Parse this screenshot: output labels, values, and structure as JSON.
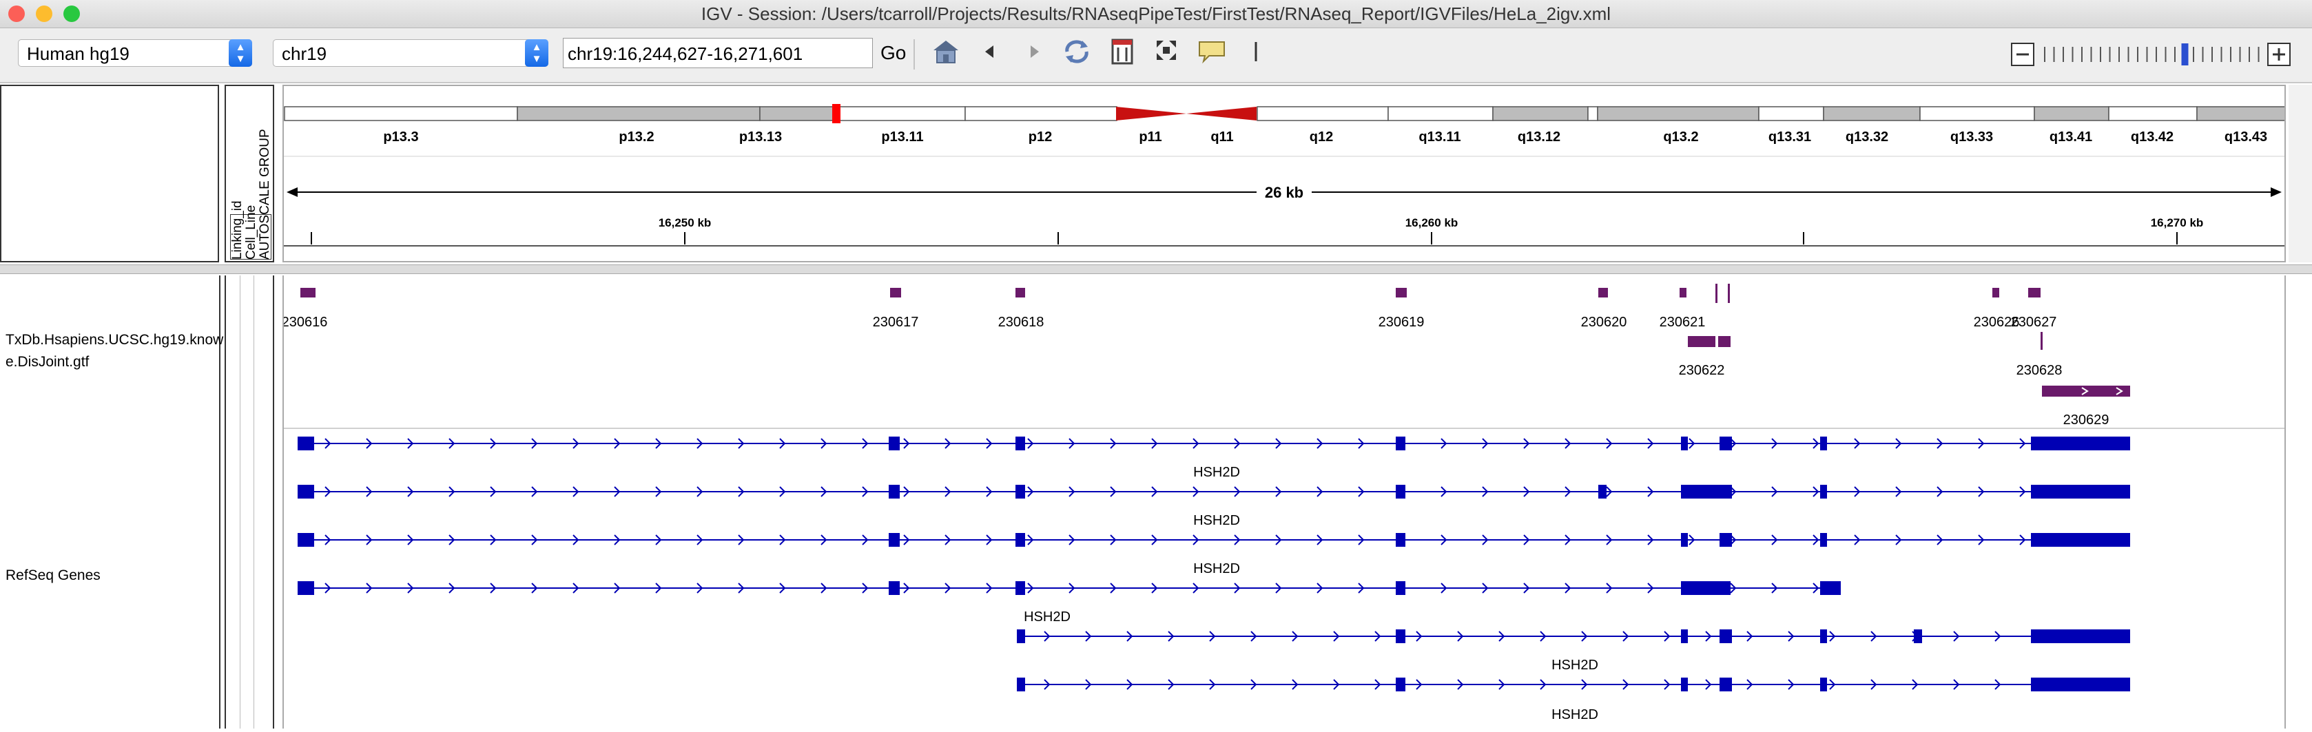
{
  "window": {
    "title": "IGV - Session: /Users/tcarroll/Projects/Results/RNAseqPipeTest/FirstTest/RNAseq_Report/IGVFiles/HeLa_2igv.xml",
    "traffic_lights": {
      "close": "#fc5f57",
      "minimize": "#fdbc2e",
      "zoom": "#28c840"
    }
  },
  "toolbar": {
    "genome_value": "Human hg19",
    "chromosome_value": "chr19",
    "locus_value": "chr19:16,244,627-16,271,601",
    "go_label": "Go",
    "icons": [
      "home-icon",
      "back-icon",
      "forward-icon",
      "refresh-icon",
      "region-of-interest-icon",
      "resize-icon",
      "popup-text-icon",
      "ruler-line-icon"
    ],
    "zoom_level": 15,
    "zoom_levels": 24
  },
  "attributes": {
    "columns": [
      "Linking_id",
      "Cell_Line",
      "AUTOSCALE GROUP"
    ]
  },
  "ruler": {
    "span_label": "26 kb",
    "ticks": [
      "16,250 kb",
      "16,260 kb",
      "16,270 kb"
    ]
  },
  "ideogram": {
    "bands": [
      "p13.3",
      "p13.2",
      "p13.13",
      "p13.11",
      "p12",
      "p11",
      "q11",
      "q12",
      "q13.11",
      "q13.12",
      "q13.2",
      "q13.31",
      "q13.32",
      "q13.33",
      "q13.41",
      "q13.42",
      "q13.43"
    ]
  },
  "tracks": {
    "gtf_name_line1": "TxDb.Hsapiens.UCSC.hg19.know",
    "gtf_name_line2": "e.DisJoint.gtf",
    "gtf_features": [
      "230616",
      "230617",
      "230618",
      "230619",
      "230620",
      "230621",
      "230626",
      "230627",
      "230622",
      "230628",
      "230629"
    ],
    "refseq_name": "RefSeq Genes",
    "refseq_transcripts": [
      "HSH2D",
      "HSH2D",
      "HSH2D",
      "HSH2D",
      "HSH2D",
      "HSH2D"
    ]
  },
  "colors": {
    "gtf_feature": "#6a1a6a",
    "refseq": "#0000b4",
    "centromere": "#c81010",
    "band_gray": "#bcbcbc"
  }
}
